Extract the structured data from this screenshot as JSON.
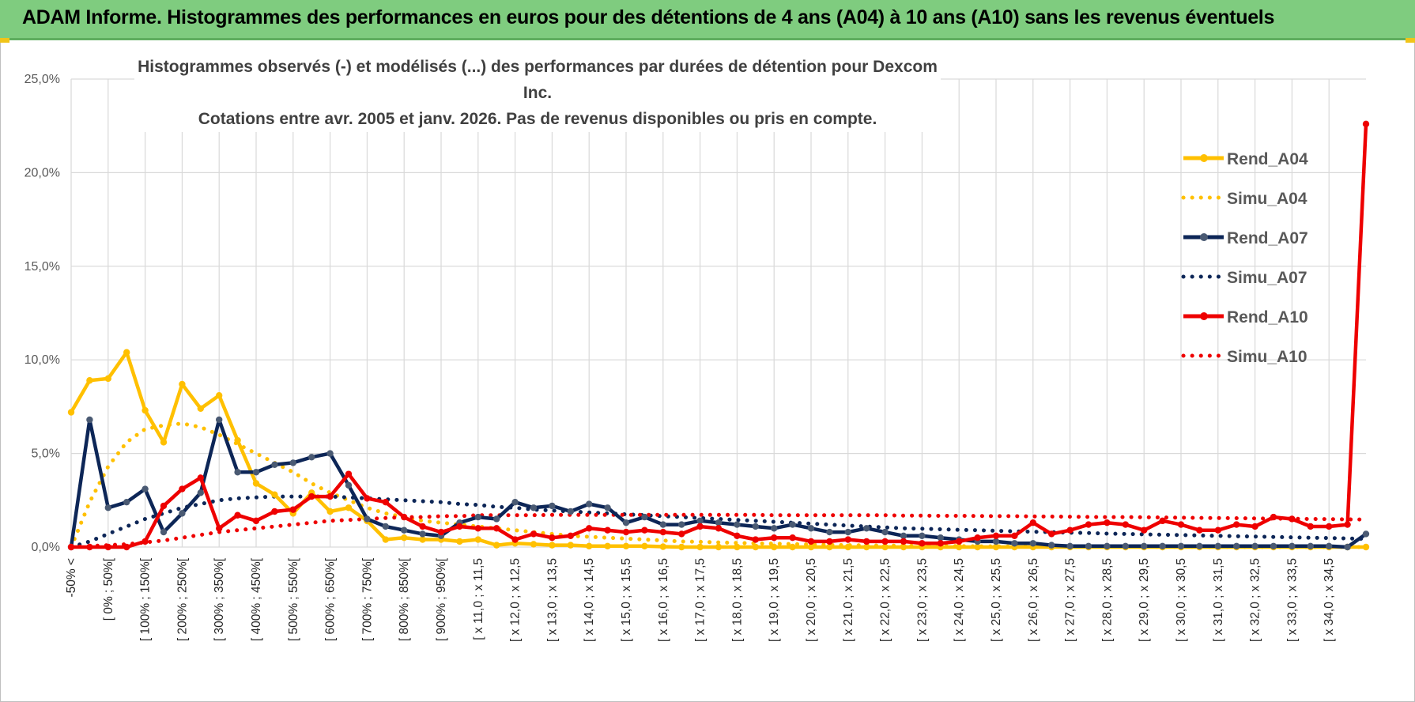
{
  "header": {
    "title": "ADAM Informe. Histogrammes des performances en euros pour des détentions de 4 ans (A04) à 10 ans (A10) sans les revenus éventuels"
  },
  "colors": {
    "a04": "#ffc000",
    "a07": "#0d2657",
    "a10": "#ee0000",
    "grid": "#d9d9d9",
    "header_bg": "#7fcc7f"
  },
  "chart_data": {
    "type": "line",
    "title_line1": "Histogrammes observés (-) et modélisés (...) des performances par durées de détention pour Dexcom Inc.",
    "title_line2": "Cotations entre avr. 2005 et janv. 2026. Pas de revenus disponibles ou pris en compte.",
    "ylim": [
      0,
      25
    ],
    "y_ticks": [
      "0,0%",
      "5,0%",
      "10,0%",
      "15,0%",
      "20,0%",
      "25,0%"
    ],
    "x_count": 71,
    "x_tick_labels": [
      "-50% <",
      "[ 0% ; 50%[",
      "[ 100% ; 150%[",
      "[ 200% ; 250%[",
      "[ 300% ; 350%[",
      "[ 400% ; 450%[",
      "[ 500% ; 550%[",
      "[ 600% ; 650%[",
      "[ 700% ; 750%[",
      "[ 800% ; 850%[",
      "[ 900% ; 950%[",
      "[ x 11,0 ; x 11,5",
      "[ x 12,0 ; x 12,5",
      "[ x 13,0 ; x 13,5",
      "[ x 14,0 ; x 14,5",
      "[ x 15,0 ; x 15,5",
      "[ x 16,0 ; x 16,5",
      "[ x 17,0 ; x 17,5",
      "[ x 18,0 ; x 18,5",
      "[ x 19,0 ; x 19,5",
      "[ x 20,0 ; x 20,5",
      "[ x 21,0 ; x 21,5",
      "[ x 22,0 ; x 22,5",
      "[ x 23,0 ; x 23,5",
      "[ x 24,0 ; x 24,5",
      "[ x 25,0 ; x 25,5",
      "[ x 26,0 ; x 26,5",
      "[ x 27,0 ; x 27,5",
      "[ x 28,0 ; x 28,5",
      "[ x 29,0 ; x 29,5",
      "[ x 30,0 ; x 30,5",
      "[ x 31,0 ; x 31,5",
      "[ x 32,0 ; x 32,5",
      "[ x 33,0 ; x 33,5",
      "[ x 34,0 ; x 34,5"
    ],
    "legend": [
      {
        "name": "Rend_A04",
        "style": "solid",
        "color": "#ffc000"
      },
      {
        "name": "Simu_A04",
        "style": "dotted",
        "color": "#ffc000"
      },
      {
        "name": "Rend_A07",
        "style": "solid",
        "color": "#0d2657"
      },
      {
        "name": "Simu_A07",
        "style": "dotted",
        "color": "#0d2657"
      },
      {
        "name": "Rend_A10",
        "style": "solid",
        "color": "#ee0000"
      },
      {
        "name": "Simu_A10",
        "style": "dotted",
        "color": "#ee0000"
      }
    ],
    "series": [
      {
        "name": "Rend_A04",
        "values": [
          7.2,
          8.9,
          9.0,
          10.4,
          7.3,
          5.6,
          8.7,
          7.4,
          8.1,
          5.7,
          3.4,
          2.8,
          1.8,
          2.9,
          1.9,
          2.1,
          1.4,
          0.4,
          0.5,
          0.4,
          0.4,
          0.3,
          0.4,
          0.1,
          0.2,
          0.15,
          0.1,
          0.1,
          0.05,
          0.05,
          0.05,
          0.05,
          0.02,
          0,
          0,
          0,
          0,
          0,
          0,
          0,
          0,
          0,
          0,
          0,
          0,
          0,
          0,
          0,
          0,
          0,
          0,
          0,
          0,
          0,
          0,
          0,
          0,
          0,
          0,
          0,
          0,
          0,
          0,
          0,
          0,
          0,
          0,
          0,
          0,
          0,
          0
        ]
      },
      {
        "name": "Simu_A04",
        "values": [
          0,
          2.4,
          4.3,
          5.6,
          6.3,
          6.5,
          6.6,
          6.4,
          6.0,
          5.5,
          5.0,
          4.5,
          4.0,
          3.4,
          2.9,
          2.5,
          2.1,
          1.8,
          1.6,
          1.4,
          1.3,
          1.2,
          1.1,
          1.0,
          0.9,
          0.8,
          0.7,
          0.6,
          0.55,
          0.5,
          0.45,
          0.4,
          0.35,
          0.3,
          0.28,
          0.25,
          0.22,
          0.2,
          0.18,
          0.16,
          0.14,
          0.12,
          0.1,
          0.09,
          0.08,
          0.07,
          0.06,
          0.05,
          0.05,
          0.04,
          0.04,
          0.03,
          0.03,
          0.03,
          0.02,
          0.02,
          0.02,
          0.02,
          0.01,
          0.01,
          0.01,
          0.01,
          0.01,
          0.01,
          0,
          0,
          0,
          0,
          0,
          0,
          0
        ]
      },
      {
        "name": "Rend_A07",
        "values": [
          0,
          6.8,
          2.1,
          2.4,
          3.1,
          0.8,
          1.8,
          2.9,
          6.8,
          4.0,
          4.0,
          4.4,
          4.5,
          4.8,
          5.0,
          3.3,
          1.5,
          1.1,
          0.9,
          0.7,
          0.6,
          1.3,
          1.6,
          1.5,
          2.4,
          2.1,
          2.2,
          1.9,
          2.3,
          2.1,
          1.3,
          1.6,
          1.2,
          1.2,
          1.4,
          1.3,
          1.2,
          1.1,
          1.0,
          1.2,
          1.0,
          0.8,
          0.8,
          1.0,
          0.8,
          0.6,
          0.6,
          0.5,
          0.4,
          0.3,
          0.3,
          0.2,
          0.2,
          0.1,
          0.05,
          0.05,
          0.05,
          0.05,
          0.05,
          0.05,
          0.05,
          0.05,
          0.05,
          0.05,
          0.05,
          0.05,
          0.05,
          0.05,
          0.05,
          0,
          0.7
        ]
      },
      {
        "name": "Simu_A07",
        "values": [
          0,
          0.3,
          0.7,
          1.1,
          1.5,
          1.8,
          2.1,
          2.3,
          2.5,
          2.6,
          2.65,
          2.7,
          2.7,
          2.7,
          2.7,
          2.65,
          2.6,
          2.55,
          2.5,
          2.45,
          2.4,
          2.3,
          2.25,
          2.15,
          2.1,
          2.0,
          1.95,
          1.9,
          1.85,
          1.8,
          1.75,
          1.7,
          1.65,
          1.6,
          1.55,
          1.5,
          1.45,
          1.4,
          1.35,
          1.3,
          1.25,
          1.2,
          1.15,
          1.1,
          1.05,
          1.0,
          0.98,
          0.95,
          0.92,
          0.9,
          0.87,
          0.84,
          0.82,
          0.8,
          0.77,
          0.75,
          0.72,
          0.7,
          0.68,
          0.66,
          0.64,
          0.62,
          0.6,
          0.58,
          0.56,
          0.54,
          0.52,
          0.5,
          0.48,
          0.46,
          0.44
        ]
      },
      {
        "name": "Rend_A10",
        "values": [
          0,
          0,
          0,
          0,
          0.3,
          2.2,
          3.1,
          3.7,
          1.0,
          1.7,
          1.4,
          1.9,
          2.0,
          2.7,
          2.7,
          3.9,
          2.6,
          2.4,
          1.6,
          1.1,
          0.8,
          1.1,
          1.0,
          1.0,
          0.4,
          0.7,
          0.5,
          0.6,
          1.0,
          0.9,
          0.8,
          0.9,
          0.8,
          0.7,
          1.1,
          1.0,
          0.6,
          0.4,
          0.5,
          0.5,
          0.3,
          0.3,
          0.4,
          0.3,
          0.3,
          0.3,
          0.2,
          0.2,
          0.3,
          0.5,
          0.6,
          0.6,
          1.3,
          0.7,
          0.9,
          1.2,
          1.3,
          1.2,
          0.9,
          1.4,
          1.2,
          0.9,
          0.9,
          1.2,
          1.1,
          1.6,
          1.5,
          1.1,
          1.1,
          1.2,
          22.6
        ]
      },
      {
        "name": "Simu_A10",
        "values": [
          0,
          0.05,
          0.1,
          0.15,
          0.25,
          0.35,
          0.5,
          0.65,
          0.8,
          0.9,
          1.0,
          1.1,
          1.2,
          1.3,
          1.4,
          1.45,
          1.5,
          1.55,
          1.6,
          1.6,
          1.65,
          1.65,
          1.7,
          1.7,
          1.7,
          1.7,
          1.72,
          1.72,
          1.72,
          1.72,
          1.72,
          1.72,
          1.72,
          1.72,
          1.72,
          1.72,
          1.72,
          1.72,
          1.7,
          1.7,
          1.7,
          1.7,
          1.7,
          1.7,
          1.7,
          1.68,
          1.68,
          1.67,
          1.67,
          1.66,
          1.65,
          1.65,
          1.64,
          1.63,
          1.62,
          1.61,
          1.6,
          1.6,
          1.59,
          1.58,
          1.57,
          1.56,
          1.55,
          1.54,
          1.53,
          1.52,
          1.51,
          1.5,
          1.49,
          1.48,
          1.47
        ]
      }
    ]
  }
}
